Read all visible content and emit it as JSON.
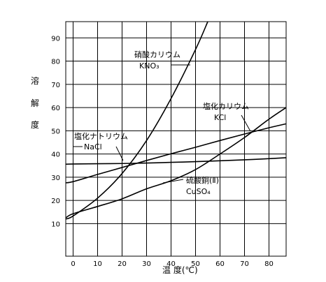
{
  "chart_data": {
    "type": "line",
    "xlabel": "温 度(℃)",
    "ylabel_chars": [
      "溶",
      "解",
      "度"
    ],
    "xlim": [
      -3,
      87
    ],
    "ylim": [
      -4,
      97
    ],
    "x_ticks": [
      0,
      10,
      20,
      30,
      40,
      50,
      60,
      70,
      80
    ],
    "y_ticks": [
      10,
      20,
      30,
      40,
      50,
      60,
      70,
      80,
      90
    ],
    "grid": true,
    "series": [
      {
        "name": "硝酸カリウム",
        "formula": "KNO₃",
        "points": [
          [
            -3,
            12
          ],
          [
            0,
            13.3
          ],
          [
            10,
            21
          ],
          [
            20,
            31.6
          ],
          [
            30,
            45.8
          ],
          [
            40,
            63.9
          ],
          [
            50,
            85
          ],
          [
            55,
            97
          ]
        ]
      },
      {
        "name": "塩化カリウム",
        "formula": "KCl",
        "points": [
          [
            -3,
            27.6
          ],
          [
            0,
            28.1
          ],
          [
            10,
            31.2
          ],
          [
            20,
            34.2
          ],
          [
            30,
            37.2
          ],
          [
            40,
            40.1
          ],
          [
            50,
            42.9
          ],
          [
            60,
            45.8
          ],
          [
            70,
            48.6
          ],
          [
            80,
            51.3
          ],
          [
            87,
            53
          ]
        ]
      },
      {
        "name": "塩化ナトリウム",
        "formula": "NaCl",
        "points": [
          [
            -3,
            35.6
          ],
          [
            0,
            35.7
          ],
          [
            10,
            35.8
          ],
          [
            20,
            35.9
          ],
          [
            30,
            36.1
          ],
          [
            40,
            36.4
          ],
          [
            50,
            36.7
          ],
          [
            60,
            37.1
          ],
          [
            70,
            37.5
          ],
          [
            80,
            38
          ],
          [
            87,
            38.4
          ]
        ]
      },
      {
        "name": "硫酸銅(Ⅱ)",
        "formula": "CuSO₄",
        "points": [
          [
            -3,
            12.5
          ],
          [
            0,
            14.3
          ],
          [
            10,
            17.4
          ],
          [
            20,
            20.7
          ],
          [
            30,
            25
          ],
          [
            40,
            28.5
          ],
          [
            50,
            33.3
          ],
          [
            60,
            40
          ],
          [
            70,
            47.1
          ],
          [
            80,
            55
          ],
          [
            87,
            60
          ]
        ]
      }
    ]
  }
}
